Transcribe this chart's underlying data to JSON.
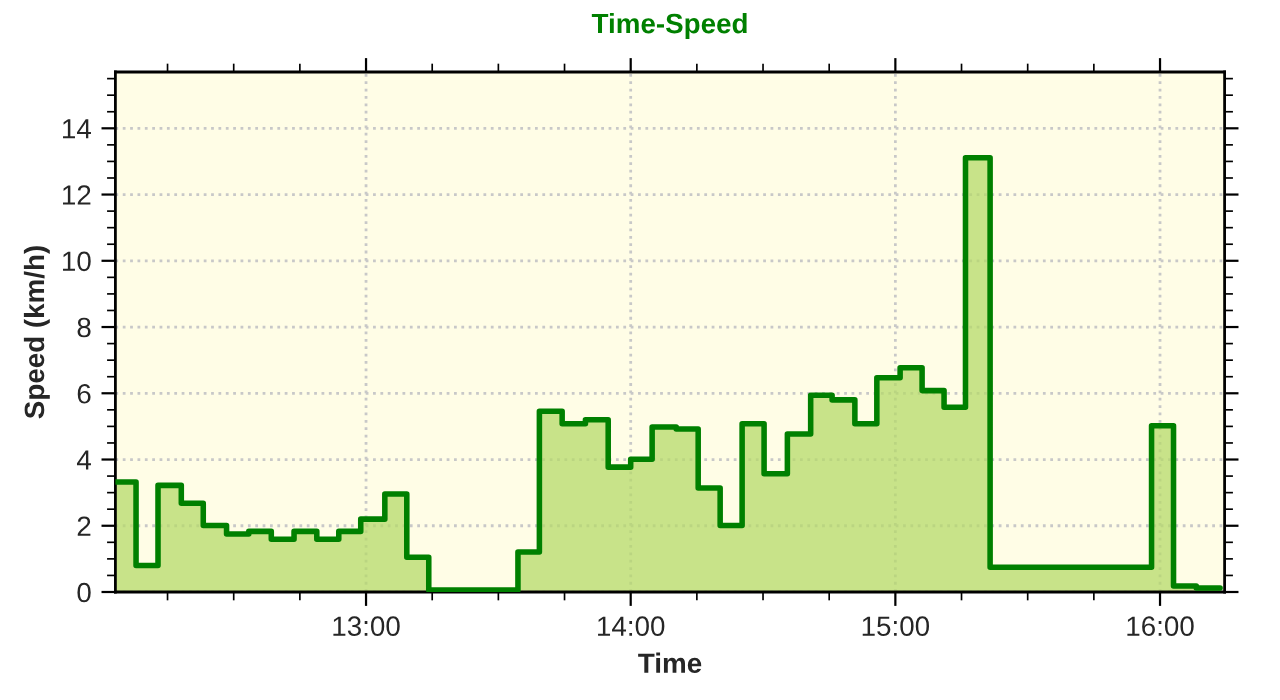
{
  "chart_data": {
    "type": "step",
    "title": "Time-Speed",
    "xlabel": "Time",
    "ylabel": "Speed (km/h)",
    "xlim": [
      12.053,
      16.244
    ],
    "ylim": [
      0,
      15.7
    ],
    "xticks": [
      {
        "value": 13,
        "label": "13:00"
      },
      {
        "value": 14,
        "label": "14:00"
      },
      {
        "value": 15,
        "label": "15:00"
      },
      {
        "value": 16,
        "label": "16:00"
      }
    ],
    "yticks": [
      0,
      2,
      4,
      6,
      8,
      10,
      12,
      14
    ],
    "grid": true,
    "legend": false,
    "marker": "none",
    "line_style": "solid",
    "series": [
      {
        "color": "#008000",
        "x": [
          12.053,
          12.131,
          12.214,
          12.302,
          12.385,
          12.473,
          12.557,
          12.642,
          12.728,
          12.814,
          12.897,
          12.98,
          13.071,
          13.154,
          13.237,
          13.574,
          13.655,
          13.741,
          13.829,
          13.915,
          14.0,
          14.081,
          14.172,
          14.255,
          14.338,
          14.421,
          14.504,
          14.592,
          14.68,
          14.761,
          14.847,
          14.93,
          15.018,
          15.101,
          15.184,
          15.265,
          15.358,
          15.968,
          16.051,
          16.137,
          16.227
        ],
        "values": [
          3.32,
          0.8,
          3.22,
          2.68,
          2.01,
          1.75,
          1.83,
          1.59,
          1.83,
          1.59,
          1.83,
          2.2,
          2.96,
          1.05,
          0.06,
          1.21,
          5.46,
          5.08,
          5.2,
          3.77,
          4.01,
          4.98,
          4.92,
          3.14,
          2.01,
          5.08,
          3.57,
          4.77,
          5.94,
          5.8,
          5.08,
          6.47,
          6.77,
          6.08,
          5.58,
          13.11,
          0.75,
          5.02,
          0.18,
          0.12,
          0.12
        ]
      }
    ]
  }
}
